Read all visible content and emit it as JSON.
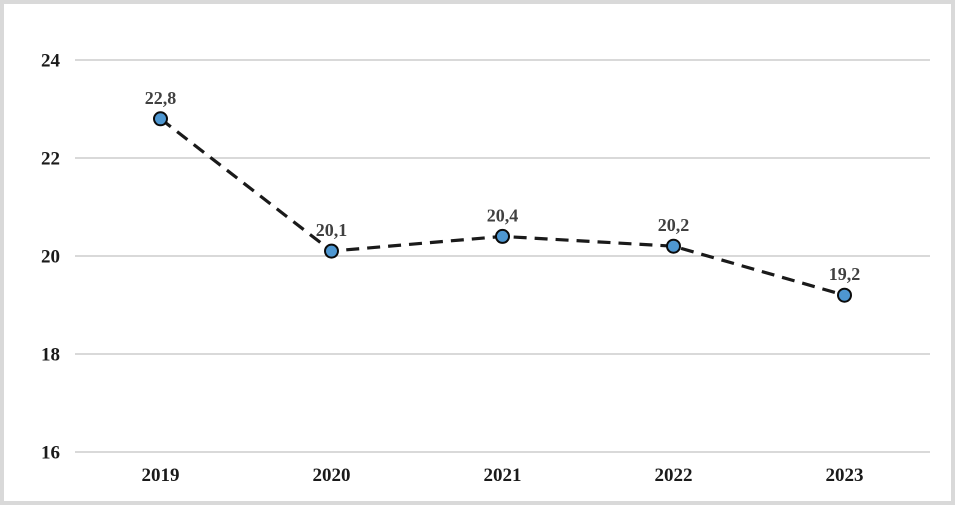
{
  "chart_data": {
    "type": "line",
    "categories": [
      "2019",
      "2020",
      "2021",
      "2022",
      "2023"
    ],
    "values": [
      22.8,
      20.1,
      20.4,
      20.2,
      19.2
    ],
    "point_labels": [
      "22,8",
      "20,1",
      "20,4",
      "20,2",
      "19,2"
    ],
    "title": "",
    "xlabel": "",
    "ylabel": "",
    "ylim": [
      16,
      24
    ],
    "yticks": [
      16,
      18,
      20,
      22,
      24
    ],
    "grid": true,
    "legend": "none",
    "line_style": "dashed",
    "marker": "circle",
    "colors": {
      "line": "#1a1a1a",
      "marker_fill": "#4e97d1",
      "marker_stroke": "#0b0b0b",
      "point_label": "#404040",
      "axis_label": "#1a1a1a",
      "gridline": "#d9d9d9",
      "frame_border": "#d9d9d9",
      "background": "#ffffff"
    }
  }
}
